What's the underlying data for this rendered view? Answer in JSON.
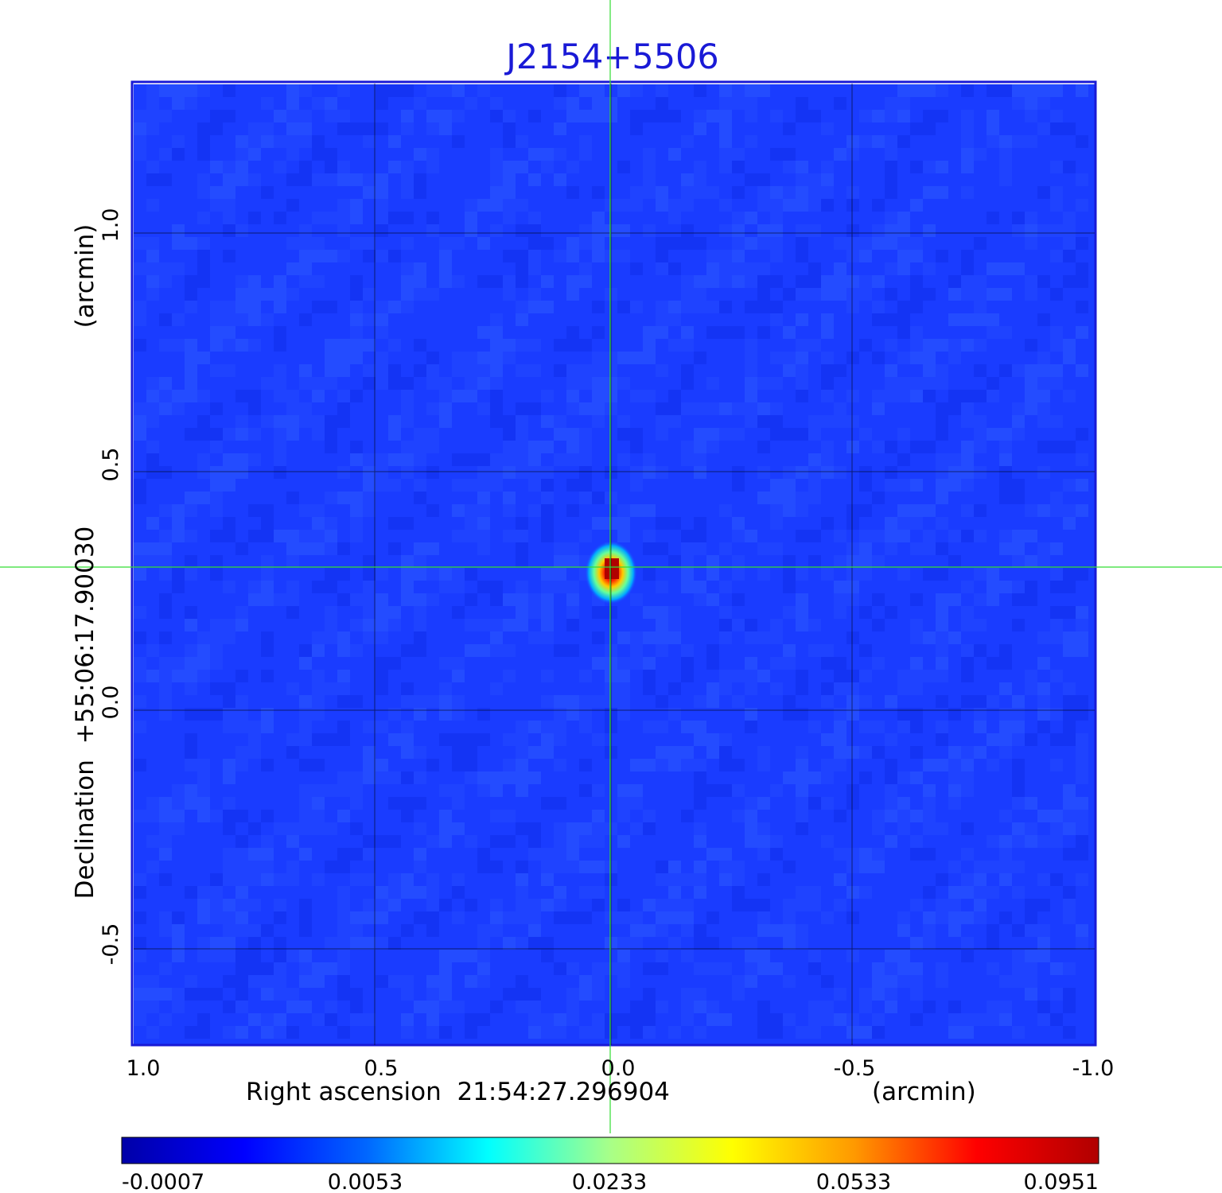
{
  "title": "J2154+5506",
  "x_axis": {
    "label": "Right ascension  21:54:27.296904",
    "unit": "(arcmin)",
    "ticks": [
      "1.0",
      "0.5",
      "0.0",
      "-0.5",
      "-1.0"
    ],
    "range": [
      1.0,
      -1.0
    ]
  },
  "y_axis": {
    "label_main": "Declination  +55:06:17.90030",
    "unit": "(arcmin)",
    "ticks": [
      "1.0",
      "0.5",
      "0.0",
      "-0.5"
    ]
  },
  "colorbar": {
    "colormap": "jet",
    "ticks": [
      "-0.0007",
      "0.0053",
      "0.0233",
      "0.0533",
      "0.0951"
    ],
    "min": -0.0007,
    "max": 0.0951
  },
  "colors": {
    "frame": "#1a1ad6",
    "background_field": "#1a3cff",
    "crosshair": "#33dd33",
    "grid": "#000000"
  },
  "source": {
    "description": "compact source near image center",
    "peak_value": 0.0951
  }
}
